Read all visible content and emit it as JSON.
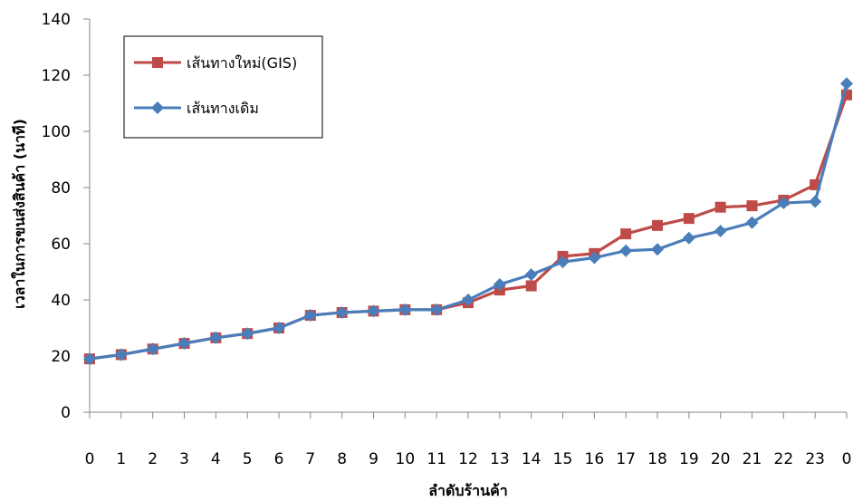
{
  "chart_data": {
    "type": "line",
    "title": "",
    "xlabel": "ลำดับร้านค้า",
    "ylabel": "เวลาในการขนส่งสินค้า (นาที)",
    "categories": [
      "0",
      "1",
      "2",
      "3",
      "4",
      "5",
      "6",
      "7",
      "8",
      "9",
      "10",
      "11",
      "12",
      "13",
      "14",
      "15",
      "16",
      "17",
      "18",
      "19",
      "20",
      "21",
      "22",
      "23",
      "0"
    ],
    "ylim": [
      0,
      140
    ],
    "yticks": [
      0,
      20,
      40,
      60,
      80,
      100,
      120,
      140
    ],
    "grid": false,
    "legend_position": "top-left",
    "series": [
      {
        "name": "เส้นทางใหม่(GIS)",
        "color": "#BE4B48",
        "marker": "square",
        "values": [
          19,
          20.5,
          22.5,
          24.5,
          26.5,
          28,
          30,
          34.5,
          35.5,
          36,
          36.5,
          36.5,
          39,
          43.5,
          45,
          55.5,
          56.5,
          63.5,
          66.5,
          69,
          73,
          73.5,
          75.5,
          81,
          113
        ]
      },
      {
        "name": "เส้นทางเดิม",
        "color": "#4A7EBB",
        "marker": "diamond",
        "values": [
          19,
          20.5,
          22.5,
          24.5,
          26.5,
          28,
          30,
          34.5,
          35.5,
          36,
          36.5,
          36.5,
          40,
          45.5,
          49,
          53.5,
          55,
          57.5,
          58,
          62,
          64.5,
          67.5,
          74.5,
          75,
          117
        ]
      }
    ]
  }
}
